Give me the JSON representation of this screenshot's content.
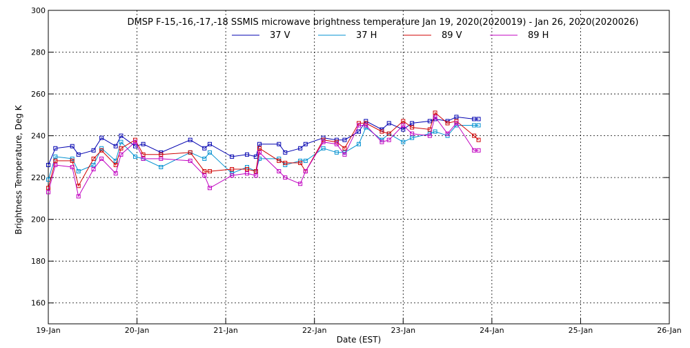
{
  "chart_data": {
    "type": "line",
    "title": "DMSP F-15,-16,-17,-18 SSMIS microwave brightness temperature Jan 19, 2020(2020019) - Jan 26, 2020(2020026)",
    "xlabel": "Date (EST)",
    "ylabel": "Brightness Temperature, Deg K",
    "xlim": [
      0,
      7
    ],
    "ylim": [
      150,
      300
    ],
    "yticks": [
      160,
      180,
      200,
      220,
      240,
      260,
      280,
      300
    ],
    "xticks": [
      {
        "value": 0,
        "label": "19-Jan"
      },
      {
        "value": 1,
        "label": "20-Jan"
      },
      {
        "value": 2,
        "label": "21-Jan"
      },
      {
        "value": 3,
        "label": "22-Jan"
      },
      {
        "value": 4,
        "label": "23-Jan"
      },
      {
        "value": 5,
        "label": "24-Jan"
      },
      {
        "value": 6,
        "label": "25-Jan"
      },
      {
        "value": 7,
        "label": "26-Jan"
      }
    ],
    "grid": true,
    "legend_position": "top",
    "series": [
      {
        "name": "37 V",
        "color": "#0000b0",
        "x": [
          0.0,
          0.08,
          0.27,
          0.34,
          0.51,
          0.6,
          0.76,
          0.82,
          0.98,
          1.07,
          1.27,
          1.6,
          1.76,
          1.82,
          2.07,
          2.24,
          2.34,
          2.38,
          2.6,
          2.67,
          2.84,
          2.9,
          3.1,
          3.25,
          3.34,
          3.5,
          3.58,
          3.76,
          3.84,
          4.0,
          4.1,
          4.3,
          4.36,
          4.5,
          4.6,
          4.8,
          4.85
        ],
        "y": [
          226,
          234,
          235,
          231,
          233,
          239,
          235,
          240,
          235,
          236,
          232,
          238,
          234,
          236,
          230,
          231,
          230,
          236,
          236,
          232,
          234,
          236,
          239,
          238,
          238,
          242,
          247,
          243,
          246,
          243,
          246,
          247,
          248,
          247,
          249,
          248,
          248
        ]
      },
      {
        "name": "37 H",
        "color": "#0090d0",
        "x": [
          0.0,
          0.08,
          0.27,
          0.34,
          0.51,
          0.6,
          0.76,
          0.82,
          0.98,
          1.07,
          1.27,
          1.6,
          1.76,
          1.82,
          2.07,
          2.24,
          2.34,
          2.38,
          2.6,
          2.67,
          2.84,
          2.9,
          3.1,
          3.25,
          3.34,
          3.5,
          3.58,
          3.76,
          3.84,
          4.0,
          4.1,
          4.3,
          4.36,
          4.5,
          4.6,
          4.8,
          4.85
        ],
        "y": [
          219,
          230,
          229,
          223,
          226,
          234,
          228,
          237,
          230,
          229,
          225,
          232,
          229,
          232,
          222,
          225,
          223,
          229,
          229,
          226,
          228,
          228,
          234,
          232,
          232,
          236,
          244,
          238,
          241,
          237,
          239,
          241,
          242,
          240,
          245,
          245,
          245
        ]
      },
      {
        "name": "89 V",
        "color": "#d00000",
        "x": [
          0.0,
          0.08,
          0.27,
          0.34,
          0.51,
          0.6,
          0.76,
          0.82,
          0.98,
          1.07,
          1.27,
          1.6,
          1.76,
          1.82,
          2.07,
          2.24,
          2.34,
          2.38,
          2.6,
          2.67,
          2.84,
          2.9,
          3.1,
          3.25,
          3.34,
          3.5,
          3.58,
          3.76,
          3.84,
          4.0,
          4.1,
          4.3,
          4.36,
          4.5,
          4.6,
          4.8,
          4.85
        ],
        "y": [
          215,
          228,
          228,
          216,
          229,
          233,
          226,
          234,
          238,
          231,
          231,
          232,
          223,
          223,
          224,
          224,
          223,
          234,
          228,
          227,
          227,
          223,
          238,
          237,
          234,
          246,
          246,
          242,
          241,
          247,
          244,
          243,
          251,
          246,
          247,
          240,
          238
        ]
      },
      {
        "name": "89 H",
        "color": "#c000c0",
        "x": [
          0.0,
          0.08,
          0.27,
          0.34,
          0.51,
          0.6,
          0.76,
          0.82,
          0.98,
          1.07,
          1.27,
          1.6,
          1.76,
          1.82,
          2.07,
          2.24,
          2.34,
          2.38,
          2.6,
          2.67,
          2.84,
          2.9,
          3.1,
          3.25,
          3.34,
          3.5,
          3.58,
          3.76,
          3.84,
          4.0,
          4.1,
          4.3,
          4.36,
          4.5,
          4.6,
          4.8,
          4.85
        ],
        "y": [
          213,
          226,
          225,
          211,
          224,
          229,
          222,
          231,
          237,
          229,
          229,
          228,
          221,
          215,
          221,
          222,
          221,
          232,
          223,
          220,
          217,
          223,
          237,
          236,
          231,
          245,
          245,
          237,
          238,
          245,
          241,
          240,
          249,
          241,
          246,
          233,
          233
        ]
      }
    ]
  }
}
